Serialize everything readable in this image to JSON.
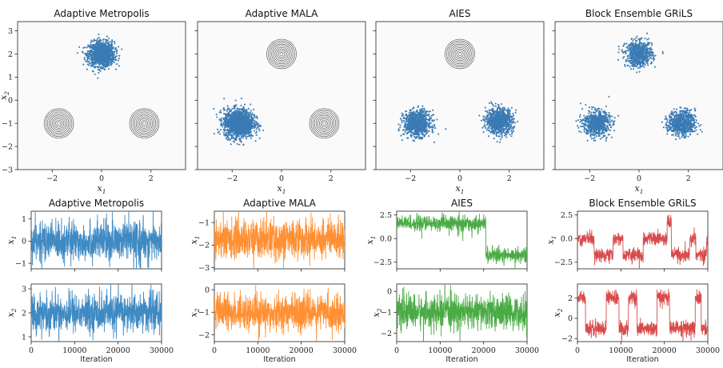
{
  "chart_data": [
    {
      "type": "scatter",
      "panel": "scatter",
      "title": "Adaptive Metropolis",
      "xlabel": "x1",
      "ylabel": "x2",
      "xlim": [
        -3.4,
        3.4
      ],
      "ylim": [
        -3,
        3.4
      ],
      "xticks": [
        "−2",
        "0",
        "2"
      ],
      "yticks": [
        "−3",
        "−2",
        "−1",
        "0",
        "1",
        "2",
        "3"
      ],
      "contours": [
        {
          "cx": -1.73,
          "cy": -1
        },
        {
          "cx": 1.73,
          "cy": -1
        }
      ],
      "clusters": [
        {
          "cx": 0,
          "cy": 2,
          "n": 1300,
          "sd": 0.26
        }
      ],
      "color": "#3b7bb4"
    },
    {
      "type": "scatter",
      "panel": "scatter",
      "title": "Adaptive MALA",
      "xlabel": "x1",
      "ylabel": "",
      "xlim": [
        -3.4,
        3.4
      ],
      "ylim": [
        -3,
        3.4
      ],
      "xticks": [
        "−2",
        "0",
        "2"
      ],
      "yticks": [],
      "contours": [
        {
          "cx": 0,
          "cy": 2
        },
        {
          "cx": 1.73,
          "cy": -1
        }
      ],
      "clusters": [
        {
          "cx": -1.73,
          "cy": -1,
          "n": 1600,
          "sd": 0.3
        }
      ],
      "color": "#3b7bb4"
    },
    {
      "type": "scatter",
      "panel": "scatter",
      "title": "AIES",
      "xlabel": "x1",
      "ylabel": "",
      "xlim": [
        -3.4,
        3.4
      ],
      "ylim": [
        -3,
        3.4
      ],
      "xticks": [
        "−2",
        "0",
        "2"
      ],
      "yticks": [],
      "contours": [
        {
          "cx": 0,
          "cy": 2
        }
      ],
      "clusters": [
        {
          "cx": -1.73,
          "cy": -1,
          "n": 900,
          "sd": 0.27
        },
        {
          "cx": 1.6,
          "cy": -0.9,
          "n": 900,
          "sd": 0.27
        }
      ],
      "color": "#3b7bb4"
    },
    {
      "type": "scatter",
      "panel": "scatter",
      "title": "Block Ensemble GRiLS",
      "xlabel": "x1",
      "ylabel": "",
      "xlim": [
        -3.4,
        3.4
      ],
      "ylim": [
        -3,
        3.4
      ],
      "xticks": [
        "−2",
        "0",
        "2"
      ],
      "yticks": [],
      "contours": [],
      "clusters": [
        {
          "cx": 0,
          "cy": 2,
          "n": 700,
          "sd": 0.27
        },
        {
          "cx": -1.73,
          "cy": -1,
          "n": 700,
          "sd": 0.27
        },
        {
          "cx": 1.73,
          "cy": -1,
          "n": 700,
          "sd": 0.27
        }
      ],
      "color": "#3b7bb4"
    },
    {
      "type": "line",
      "panel": "trace",
      "title": "Adaptive Metropolis",
      "ylabel": "x1",
      "xlim": [
        0,
        30000
      ],
      "ylim": [
        -1.25,
        1.35
      ],
      "yticks": [
        {
          "v": -1,
          "t": "−1"
        },
        {
          "v": 0,
          "t": "0"
        },
        {
          "v": 1,
          "t": "1"
        }
      ],
      "color": "#3f8ac3",
      "segments": [
        {
          "from": 0,
          "to": 30000,
          "mean": 0,
          "sd": 0.42
        }
      ],
      "iterations": 30000
    },
    {
      "type": "line",
      "panel": "trace",
      "title": "Adaptive MALA",
      "ylabel": "x1",
      "xlim": [
        0,
        30000
      ],
      "ylim": [
        -3.05,
        -0.5
      ],
      "yticks": [
        {
          "v": -3,
          "t": "−3"
        },
        {
          "v": -2,
          "t": "−2"
        },
        {
          "v": -1,
          "t": "−1"
        }
      ],
      "color": "#ff9033",
      "segments": [
        {
          "from": 0,
          "to": 30000,
          "mean": -1.73,
          "sd": 0.42
        }
      ],
      "iterations": 30000
    },
    {
      "type": "line",
      "panel": "trace",
      "title": "AIES",
      "ylabel": "x1",
      "xlim": [
        0,
        30000
      ],
      "ylim": [
        -3.2,
        2.9
      ],
      "yticks": [
        {
          "v": -2.5,
          "t": "−2.5"
        },
        {
          "v": 0,
          "t": "0.0"
        },
        {
          "v": 2.5,
          "t": "2.5"
        }
      ],
      "color": "#4aab45",
      "segments": [
        {
          "from": 0,
          "to": 20500,
          "mean": 1.6,
          "sd": 0.38
        },
        {
          "from": 20500,
          "to": 30000,
          "mean": -1.73,
          "sd": 0.38
        }
      ],
      "iterations": 30000
    },
    {
      "type": "line",
      "panel": "trace",
      "title": "Block Ensemble GRiLS",
      "ylabel": "x1",
      "xlim": [
        0,
        30000
      ],
      "ylim": [
        -3.2,
        2.9
      ],
      "yticks": [
        {
          "v": -2.5,
          "t": "−2.5"
        },
        {
          "v": 0,
          "t": "0.0"
        },
        {
          "v": 2.5,
          "t": "2.5"
        }
      ],
      "color": "#d94b4b",
      "segments": [
        {
          "from": 0,
          "to": 30000,
          "mean": "switching",
          "sd": 0.35
        }
      ],
      "modes_x1": [
        0,
        -1.73,
        1.73
      ],
      "iterations": 30000
    },
    {
      "type": "line",
      "panel": "trace",
      "title": "",
      "xlabel": "Iteration",
      "ylabel": "x2",
      "xlim": [
        0,
        30000
      ],
      "ylim": [
        0.8,
        3.2
      ],
      "xticks": [
        "0",
        "10000",
        "20000",
        "30000"
      ],
      "yticks": [
        {
          "v": 1,
          "t": "1"
        },
        {
          "v": 2,
          "t": "2"
        },
        {
          "v": 3,
          "t": "3"
        }
      ],
      "color": "#3f8ac3",
      "segments": [
        {
          "from": 0,
          "to": 30000,
          "mean": 2,
          "sd": 0.38
        }
      ],
      "iterations": 30000
    },
    {
      "type": "line",
      "panel": "trace",
      "title": "",
      "xlabel": "Iteration",
      "ylabel": "x2",
      "xlim": [
        0,
        30000
      ],
      "ylim": [
        -2.3,
        0.25
      ],
      "xticks": [
        "0",
        "10000",
        "20000",
        "30000"
      ],
      "yticks": [
        {
          "v": -2,
          "t": "−2"
        },
        {
          "v": -1,
          "t": "−1"
        },
        {
          "v": 0,
          "t": "0"
        }
      ],
      "color": "#ff9033",
      "segments": [
        {
          "from": 0,
          "to": 30000,
          "mean": -1,
          "sd": 0.38
        }
      ],
      "iterations": 30000
    },
    {
      "type": "line",
      "panel": "trace",
      "title": "",
      "xlabel": "Iteration",
      "ylabel": "x2",
      "xlim": [
        0,
        30000
      ],
      "ylim": [
        -2.4,
        0.35
      ],
      "xticks": [
        "0",
        "10000",
        "20000",
        "30000"
      ],
      "yticks": [
        {
          "v": -2,
          "t": "−2"
        },
        {
          "v": -1,
          "t": "−1"
        },
        {
          "v": 0,
          "t": "0"
        }
      ],
      "color": "#4aab45",
      "segments": [
        {
          "from": 0,
          "to": 30000,
          "mean": -1,
          "sd": 0.38
        }
      ],
      "iterations": 30000
    },
    {
      "type": "line",
      "panel": "trace",
      "title": "",
      "xlabel": "Iteration",
      "ylabel": "x2",
      "xlim": [
        0,
        30000
      ],
      "ylim": [
        -2.3,
        3.4
      ],
      "xticks": [
        "0",
        "10000",
        "20000",
        "30000"
      ],
      "yticks": [
        {
          "v": -2,
          "t": "−2"
        },
        {
          "v": 0,
          "t": "0"
        },
        {
          "v": 2,
          "t": "2"
        }
      ],
      "color": "#d94b4b",
      "segments": [
        {
          "from": 0,
          "to": 30000,
          "mean": "switching",
          "sd": 0.35
        }
      ],
      "modes_x2": [
        2,
        -1,
        -1
      ],
      "iterations": 30000
    }
  ]
}
